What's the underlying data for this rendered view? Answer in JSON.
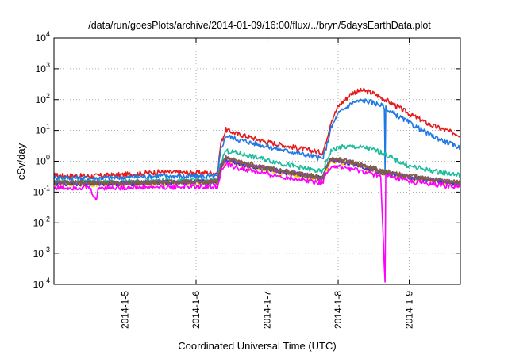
{
  "chart_data": {
    "type": "line",
    "title": "/data/run/goesPlots/archive/2014-01-09/16:00/flux/../bryn/5daysEarthData.plot",
    "xlabel": "Coordinated Universal Time (UTC)",
    "ylabel": "cSv/day",
    "y_scale": "log",
    "ylim": [
      0.0001,
      10000
    ],
    "y_ticks": [
      {
        "value": 0.0001,
        "base": "10",
        "exp": "-4"
      },
      {
        "value": 0.001,
        "base": "10",
        "exp": "-3"
      },
      {
        "value": 0.01,
        "base": "10",
        "exp": "-2"
      },
      {
        "value": 0.1,
        "base": "10",
        "exp": "-1"
      },
      {
        "value": 1,
        "base": "10",
        "exp": "0"
      },
      {
        "value": 10,
        "base": "10",
        "exp": "1"
      },
      {
        "value": 100,
        "base": "10",
        "exp": "2"
      },
      {
        "value": 1000,
        "base": "10",
        "exp": "3"
      },
      {
        "value": 10000,
        "base": "10",
        "exp": "4"
      }
    ],
    "xlim": [
      4.0,
      9.72
    ],
    "x_ticks": [
      {
        "value": 5,
        "label": "2014-1-5"
      },
      {
        "value": 6,
        "label": "2014-1-6"
      },
      {
        "value": 7,
        "label": "2014-1-7"
      },
      {
        "value": 8,
        "label": "2014-1-8"
      },
      {
        "value": 9,
        "label": "2014-1-9"
      }
    ],
    "grid": true,
    "series": [
      {
        "color": "#e41a1c",
        "points": [
          [
            4.0,
            0.35
          ],
          [
            4.5,
            0.33
          ],
          [
            5.0,
            0.37
          ],
          [
            5.5,
            0.45
          ],
          [
            6.0,
            0.42
          ],
          [
            6.3,
            0.42
          ],
          [
            6.35,
            4.0
          ],
          [
            6.42,
            10.5
          ],
          [
            6.6,
            7.5
          ],
          [
            7.0,
            4.2
          ],
          [
            7.5,
            2.5
          ],
          [
            7.78,
            1.9
          ],
          [
            7.82,
            3.5
          ],
          [
            7.9,
            20
          ],
          [
            8.0,
            60
          ],
          [
            8.2,
            170
          ],
          [
            8.35,
            200
          ],
          [
            8.5,
            160
          ],
          [
            8.7,
            90
          ],
          [
            9.0,
            35
          ],
          [
            9.3,
            15
          ],
          [
            9.72,
            7
          ]
        ]
      },
      {
        "color": "#1f78e4",
        "points": [
          [
            4.0,
            0.3
          ],
          [
            4.5,
            0.28
          ],
          [
            5.0,
            0.3
          ],
          [
            5.5,
            0.34
          ],
          [
            6.0,
            0.32
          ],
          [
            6.3,
            0.32
          ],
          [
            6.35,
            2.5
          ],
          [
            6.42,
            6.8
          ],
          [
            6.6,
            5.0
          ],
          [
            7.0,
            3.0
          ],
          [
            7.5,
            1.7
          ],
          [
            7.78,
            1.2
          ],
          [
            7.82,
            2.2
          ],
          [
            7.9,
            12
          ],
          [
            8.0,
            35
          ],
          [
            8.2,
            80
          ],
          [
            8.35,
            95
          ],
          [
            8.5,
            80
          ],
          [
            8.65,
            60
          ],
          [
            8.66,
            0.5
          ],
          [
            8.67,
            60
          ],
          [
            8.7,
            45
          ],
          [
            9.0,
            18
          ],
          [
            9.3,
            7
          ],
          [
            9.72,
            2.7
          ]
        ]
      },
      {
        "color": "#1abc9c",
        "points": [
          [
            4.0,
            0.22
          ],
          [
            5.0,
            0.22
          ],
          [
            6.0,
            0.24
          ],
          [
            6.3,
            0.24
          ],
          [
            6.35,
            1.0
          ],
          [
            6.42,
            2.2
          ],
          [
            6.6,
            1.8
          ],
          [
            7.0,
            1.1
          ],
          [
            7.5,
            0.6
          ],
          [
            7.78,
            0.45
          ],
          [
            7.82,
            0.8
          ],
          [
            7.9,
            2.2
          ],
          [
            8.0,
            2.8
          ],
          [
            8.2,
            3.0
          ],
          [
            8.4,
            2.7
          ],
          [
            8.6,
            2.0
          ],
          [
            8.8,
            1.1
          ],
          [
            9.0,
            0.7
          ],
          [
            9.3,
            0.5
          ],
          [
            9.72,
            0.35
          ]
        ]
      },
      {
        "color": "#ffd700",
        "points": [
          [
            4.0,
            0.18
          ],
          [
            5.0,
            0.18
          ],
          [
            6.0,
            0.2
          ],
          [
            6.3,
            0.2
          ],
          [
            6.35,
            0.6
          ],
          [
            6.42,
            1.1
          ],
          [
            6.6,
            0.8
          ],
          [
            7.0,
            0.5
          ],
          [
            7.5,
            0.33
          ],
          [
            7.78,
            0.25
          ],
          [
            7.82,
            0.45
          ],
          [
            7.9,
            1.0
          ],
          [
            8.2,
            0.8
          ],
          [
            8.6,
            0.42
          ],
          [
            9.0,
            0.28
          ],
          [
            9.72,
            0.17
          ]
        ]
      },
      {
        "color": "#3333cc",
        "points": [
          [
            4.0,
            0.19
          ],
          [
            5.0,
            0.19
          ],
          [
            6.0,
            0.21
          ],
          [
            6.3,
            0.21
          ],
          [
            6.35,
            0.65
          ],
          [
            6.42,
            1.2
          ],
          [
            6.6,
            0.85
          ],
          [
            7.0,
            0.55
          ],
          [
            7.5,
            0.35
          ],
          [
            7.78,
            0.27
          ],
          [
            7.82,
            0.5
          ],
          [
            7.9,
            1.1
          ],
          [
            8.2,
            0.85
          ],
          [
            8.6,
            0.45
          ],
          [
            9.0,
            0.3
          ],
          [
            9.72,
            0.18
          ]
        ]
      },
      {
        "color": "#8e44ad",
        "points": [
          [
            4.0,
            0.2
          ],
          [
            5.0,
            0.2
          ],
          [
            6.0,
            0.22
          ],
          [
            6.3,
            0.22
          ],
          [
            6.35,
            0.7
          ],
          [
            6.42,
            1.3
          ],
          [
            6.6,
            0.9
          ],
          [
            7.0,
            0.58
          ],
          [
            7.5,
            0.37
          ],
          [
            7.78,
            0.28
          ],
          [
            7.82,
            0.55
          ],
          [
            7.9,
            1.2
          ],
          [
            8.2,
            0.9
          ],
          [
            8.6,
            0.48
          ],
          [
            9.0,
            0.32
          ],
          [
            9.72,
            0.19
          ]
        ]
      },
      {
        "color": "#7f5f3f",
        "points": [
          [
            4.0,
            0.2
          ],
          [
            5.0,
            0.2
          ],
          [
            6.0,
            0.22
          ],
          [
            6.3,
            0.22
          ],
          [
            6.35,
            0.7
          ],
          [
            6.42,
            1.3
          ],
          [
            6.6,
            0.95
          ],
          [
            7.0,
            0.6
          ],
          [
            7.5,
            0.38
          ],
          [
            7.78,
            0.29
          ],
          [
            7.82,
            0.55
          ],
          [
            7.9,
            1.25
          ],
          [
            8.2,
            0.95
          ],
          [
            8.6,
            0.5
          ],
          [
            9.0,
            0.33
          ],
          [
            9.72,
            0.2
          ]
        ]
      },
      {
        "color": "#ff00ff",
        "points": [
          [
            4.0,
            0.14
          ],
          [
            4.5,
            0.14
          ],
          [
            4.6,
            0.05
          ],
          [
            4.62,
            0.14
          ],
          [
            5.0,
            0.14
          ],
          [
            6.0,
            0.15
          ],
          [
            6.3,
            0.15
          ],
          [
            6.35,
            0.45
          ],
          [
            6.42,
            0.8
          ],
          [
            6.6,
            0.6
          ],
          [
            7.0,
            0.38
          ],
          [
            7.5,
            0.25
          ],
          [
            7.78,
            0.2
          ],
          [
            7.82,
            0.35
          ],
          [
            7.9,
            0.7
          ],
          [
            8.2,
            0.55
          ],
          [
            8.6,
            0.33
          ],
          [
            8.66,
            0.0001
          ],
          [
            8.67,
            0.33
          ],
          [
            9.0,
            0.22
          ],
          [
            9.72,
            0.14
          ]
        ]
      }
    ]
  }
}
